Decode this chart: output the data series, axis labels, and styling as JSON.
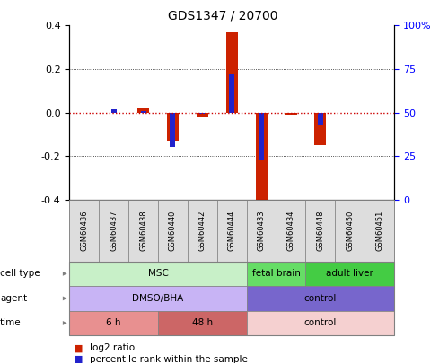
{
  "title": "GDS1347 / 20700",
  "samples": [
    "GSM60436",
    "GSM60437",
    "GSM60438",
    "GSM60440",
    "GSM60442",
    "GSM60444",
    "GSM60433",
    "GSM60434",
    "GSM60448",
    "GSM60450",
    "GSM60451"
  ],
  "log2_ratio": [
    0.0,
    0.0,
    0.02,
    -0.13,
    -0.02,
    0.37,
    -0.43,
    -0.01,
    -0.15,
    0.0,
    0.0
  ],
  "percentile_rank": [
    50,
    52,
    51,
    30,
    49,
    72,
    23,
    50,
    43,
    50,
    50
  ],
  "ylim": [
    -0.4,
    0.4
  ],
  "yticks_left": [
    -0.4,
    -0.2,
    0.0,
    0.2,
    0.4
  ],
  "yticks_right_vals": [
    -0.4,
    -0.2,
    0.0,
    0.2,
    0.4
  ],
  "yticks_right_labels": [
    "0",
    "25",
    "50",
    "75",
    "100%"
  ],
  "cell_type_groups": [
    {
      "label": "MSC",
      "start": 0,
      "end": 6,
      "color": "#c8f0c8"
    },
    {
      "label": "fetal brain",
      "start": 6,
      "end": 8,
      "color": "#66dd66"
    },
    {
      "label": "adult liver",
      "start": 8,
      "end": 11,
      "color": "#44cc44"
    }
  ],
  "agent_groups": [
    {
      "label": "DMSO/BHA",
      "start": 0,
      "end": 6,
      "color": "#c8b4f5"
    },
    {
      "label": "control",
      "start": 6,
      "end": 11,
      "color": "#7766cc"
    }
  ],
  "time_groups": [
    {
      "label": "6 h",
      "start": 0,
      "end": 3,
      "color": "#e89090"
    },
    {
      "label": "48 h",
      "start": 3,
      "end": 6,
      "color": "#cc6666"
    },
    {
      "label": "control",
      "start": 6,
      "end": 11,
      "color": "#f5d0d0"
    }
  ],
  "bar_color_red": "#cc2200",
  "bar_color_blue": "#2222cc",
  "zero_line_color": "#cc0000",
  "dotted_line_color": "#222222",
  "bg_color": "#ffffff",
  "axis_bg": "#ffffff",
  "tick_label_bg": "#dddddd",
  "row_labels": [
    "cell type",
    "agent",
    "time"
  ],
  "legend_red": "log2 ratio",
  "legend_blue": "percentile rank within the sample",
  "red_bar_width": 0.4,
  "blue_bar_width": 0.18
}
